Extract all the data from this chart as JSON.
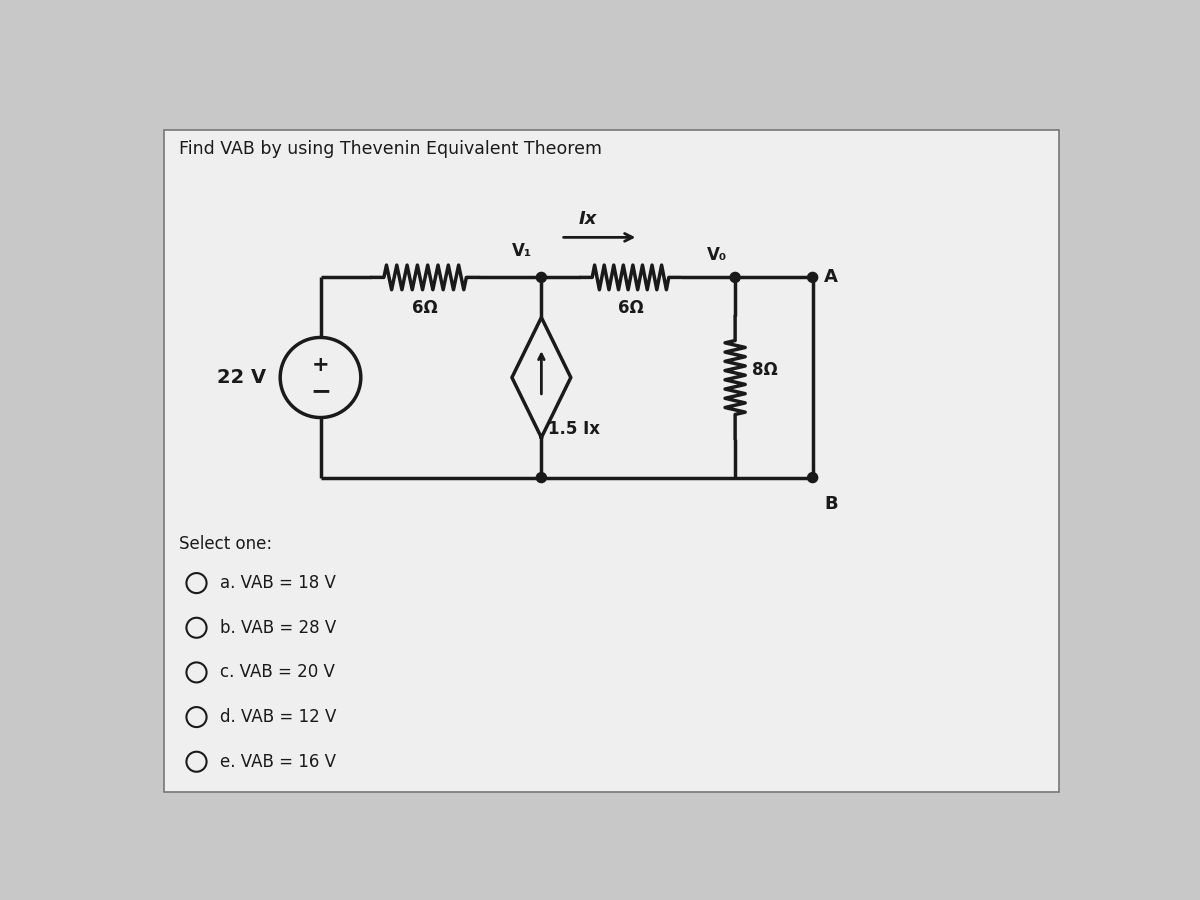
{
  "title": "Find VAB by using Thevenin Equivalent Theorem",
  "bg_outer": "#c8c8c8",
  "bg_inner": "#e8e8e8",
  "line_color": "#1a1a1a",
  "options": [
    "a. VAB = 18 V",
    "b. VAB = 28 V",
    "c. VAB = 20 V",
    "d. VAB = 12 V",
    "e. VAB = 16 V"
  ],
  "select_one_text": "Select one:",
  "voltage_source": "22 V",
  "r1_label": "6Ω",
  "r2_label": "6Ω",
  "r3_label": "8Ω",
  "cs_label": "1.5 Ix",
  "v1_label": "V₁",
  "vo_label": "V₀",
  "ix_label": "Ix",
  "node_a_label": "A",
  "node_b_label": "B"
}
